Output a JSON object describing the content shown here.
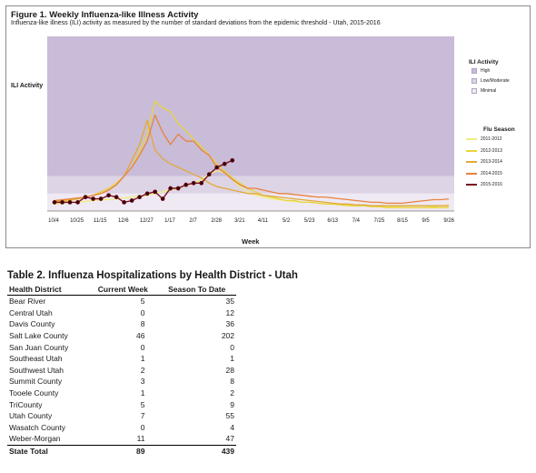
{
  "figure": {
    "title": "Figure 1. Weekly Influenza-like Illness Activity",
    "subtitle": "Influenza-like illness (ILI) activity  as measured by the number of standard deviations from the epidemic threshold - Utah, 2015-2016",
    "y_label": "ILI Activity",
    "x_label": "Week",
    "activity_legend": {
      "title": "ILI Activity",
      "items": [
        {
          "label": "High",
          "color": "#c9bcd8"
        },
        {
          "label": "Low/Moderate",
          "color": "#ddd4e6"
        },
        {
          "label": "Minimal",
          "color": "#efe9f3"
        }
      ]
    },
    "season_legend": {
      "title": "Flu Season",
      "items": [
        {
          "label": "2011-2012",
          "color": "#eeee7a"
        },
        {
          "label": "2012-2013",
          "color": "#e8d43a"
        },
        {
          "label": "2013-2014",
          "color": "#e2a93a"
        },
        {
          "label": "2014-2015",
          "color": "#e8823f"
        },
        {
          "label": "2015-2016",
          "color": "#7a1020"
        }
      ]
    }
  },
  "chart_data": {
    "type": "line",
    "title": "Figure 1. Weekly Influenza-like Illness Activity",
    "xlabel": "Week",
    "ylabel": "ILI Activity",
    "x_ticks": [
      "10/4",
      "10/25",
      "11/15",
      "12/6",
      "12/27",
      "1/17",
      "2/7",
      "2/28",
      "3/21",
      "4/11",
      "5/2",
      "5/23",
      "6/13",
      "7/4",
      "7/25",
      "8/15",
      "9/5",
      "9/26"
    ],
    "y_range": [
      0,
      10
    ],
    "activity_bands": [
      {
        "name": "Minimal",
        "from": 0,
        "to": 1
      },
      {
        "name": "Low/Moderate",
        "from": 1,
        "to": 2
      },
      {
        "name": "High",
        "from": 2,
        "to": 10
      }
    ],
    "grid": false,
    "legend_position": "right",
    "series": [
      {
        "name": "2011-2012",
        "color": "#eeee7a",
        "values": [
          0.4,
          0.45,
          0.5,
          0.5,
          0.55,
          0.6,
          0.65,
          0.65,
          0.7,
          0.75,
          0.8,
          0.85,
          0.9,
          1.0,
          1.1,
          1.2,
          1.3,
          1.45,
          1.6,
          1.8,
          2.1,
          2.3,
          2.2,
          1.8,
          1.4,
          1.1,
          0.9,
          0.8,
          0.7,
          0.65,
          0.6,
          0.55,
          0.5,
          0.5,
          0.45,
          0.4,
          0.4,
          0.35,
          0.35,
          0.3,
          0.3,
          0.3,
          0.25,
          0.25,
          0.25,
          0.2,
          0.2,
          0.2,
          0.2,
          0.25,
          0.3,
          0.35
        ]
      },
      {
        "name": "2012-2013",
        "color": "#e8d43a",
        "values": [
          0.5,
          0.55,
          0.6,
          0.7,
          0.8,
          0.9,
          1.1,
          1.3,
          1.6,
          2.0,
          2.5,
          3.4,
          4.4,
          6.3,
          5.9,
          5.7,
          5.0,
          4.6,
          4.1,
          3.7,
          3.2,
          2.7,
          2.3,
          1.9,
          1.6,
          1.3,
          1.1,
          0.9,
          0.8,
          0.7,
          0.6,
          0.6,
          0.5,
          0.5,
          0.45,
          0.4,
          0.4,
          0.35,
          0.3,
          0.3,
          0.3,
          0.25,
          0.25,
          0.2,
          0.2,
          0.2,
          0.2,
          0.2,
          0.2,
          0.2,
          0.2,
          0.2
        ]
      },
      {
        "name": "2013-2014",
        "color": "#e2a93a",
        "values": [
          0.55,
          0.6,
          0.65,
          0.7,
          0.8,
          0.9,
          1.0,
          1.2,
          1.5,
          2.0,
          2.9,
          3.8,
          5.2,
          3.5,
          3.0,
          2.7,
          2.5,
          2.3,
          2.1,
          1.9,
          1.6,
          1.4,
          1.3,
          1.2,
          1.1,
          1.0,
          1.0,
          0.9,
          0.85,
          0.8,
          0.75,
          0.7,
          0.65,
          0.6,
          0.55,
          0.5,
          0.45,
          0.4,
          0.4,
          0.35,
          0.35,
          0.3,
          0.3,
          0.3,
          0.3,
          0.3,
          0.3,
          0.3,
          0.3,
          0.3,
          0.3,
          0.3
        ]
      },
      {
        "name": "2014-2015",
        "color": "#e8823f",
        "values": [
          0.6,
          0.65,
          0.7,
          0.75,
          0.8,
          0.9,
          1.0,
          1.2,
          1.5,
          2.0,
          2.5,
          3.2,
          4.0,
          5.5,
          4.5,
          3.8,
          4.4,
          4.0,
          4.0,
          3.5,
          3.2,
          2.5,
          2.2,
          1.8,
          1.5,
          1.3,
          1.3,
          1.2,
          1.1,
          1.0,
          1.0,
          0.95,
          0.9,
          0.85,
          0.8,
          0.8,
          0.75,
          0.7,
          0.65,
          0.6,
          0.55,
          0.5,
          0.5,
          0.45,
          0.45,
          0.45,
          0.5,
          0.55,
          0.6,
          0.65,
          0.65,
          0.7
        ]
      },
      {
        "name": "2015-2016",
        "color": "#7a1020",
        "values": [
          0.5,
          0.5,
          0.5,
          0.5,
          0.8,
          0.7,
          0.7,
          0.9,
          0.8,
          0.5,
          0.6,
          0.8,
          1.0,
          1.1,
          0.7,
          1.3,
          1.3,
          1.5,
          1.6,
          1.6,
          2.1,
          2.5,
          2.7,
          2.9
        ]
      }
    ]
  },
  "table": {
    "title": "Table 2. Influenza Hospitalizations by Health District - Utah",
    "headers": [
      "Health District",
      "Current Week",
      "Season To Date"
    ],
    "rows": [
      {
        "district": "Bear River",
        "current": "5",
        "season": "35"
      },
      {
        "district": "Central Utah",
        "current": "0",
        "season": "12"
      },
      {
        "district": "Davis County",
        "current": "8",
        "season": "36"
      },
      {
        "district": "Salt Lake County",
        "current": "46",
        "season": "202"
      },
      {
        "district": "San Juan County",
        "current": "0",
        "season": "0"
      },
      {
        "district": "Southeast Utah",
        "current": "1",
        "season": "1"
      },
      {
        "district": "Southwest Utah",
        "current": "2",
        "season": "28"
      },
      {
        "district": "Summit County",
        "current": "3",
        "season": "8"
      },
      {
        "district": "Tooele County",
        "current": "1",
        "season": "2"
      },
      {
        "district": "TriCounty",
        "current": "5",
        "season": "9"
      },
      {
        "district": "Utah County",
        "current": "7",
        "season": "55"
      },
      {
        "district": "Wasatch County",
        "current": "0",
        "season": "4"
      },
      {
        "district": "Weber-Morgan",
        "current": "11",
        "season": "47"
      }
    ],
    "total": {
      "district": "State Total",
      "current": "89",
      "season": "439"
    }
  }
}
